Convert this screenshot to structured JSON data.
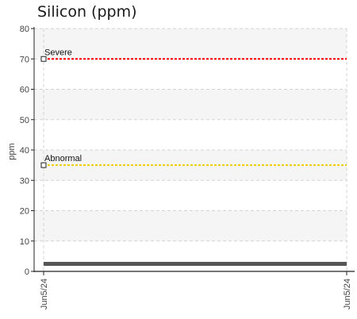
{
  "chart_data": {
    "type": "line",
    "title": "Silicon (ppm)",
    "ylabel": "ppm",
    "xlabel": "",
    "ylim": [
      0,
      80
    ],
    "yticks": [
      0,
      10,
      20,
      30,
      40,
      50,
      60,
      70,
      80
    ],
    "categories": [
      "Jun5/24",
      "Jun5/24"
    ],
    "grid": true,
    "series": [
      {
        "values": [
          2.5,
          2.5
        ],
        "color": "#555555"
      }
    ],
    "thresholds": [
      {
        "label": "Severe",
        "value": 70,
        "color": "#ff0000"
      },
      {
        "label": "Abnormal",
        "value": 35,
        "color": "#f0cc00"
      }
    ]
  }
}
